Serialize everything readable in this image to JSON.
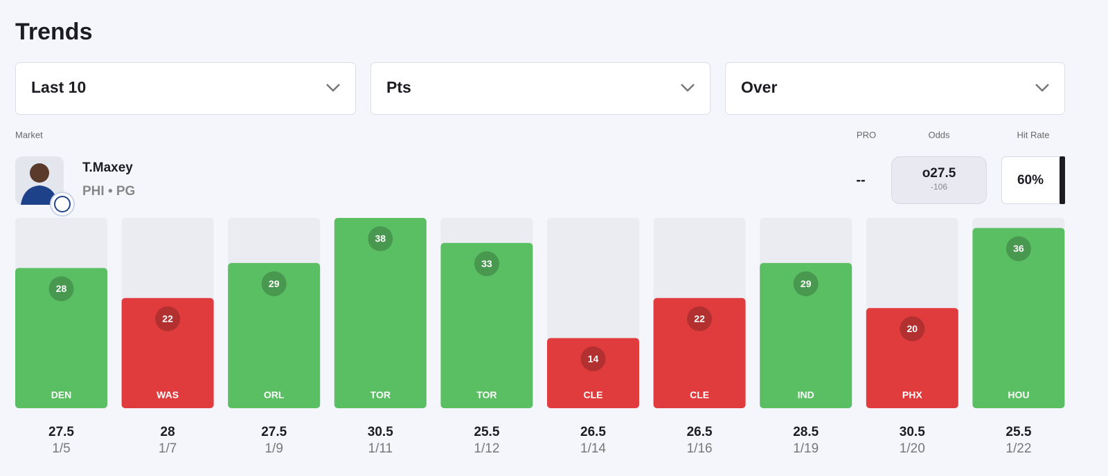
{
  "header": {
    "title": "Trends"
  },
  "filters": [
    "Last 10",
    "Pts",
    "Over"
  ],
  "market": {
    "label": "Market",
    "player": "T.Maxey",
    "team_position": "PHI • PG"
  },
  "columns": {
    "pro": "PRO",
    "odds": "Odds",
    "hit_rate": "Hit Rate"
  },
  "pro_value": "--",
  "odds": {
    "line": "o27.5",
    "price": "-106"
  },
  "hit_rate": "60%",
  "chart_data": {
    "type": "bar",
    "categories": [
      "DEN",
      "WAS",
      "ORL",
      "TOR",
      "TOR",
      "CLE",
      "CLE",
      "IND",
      "PHX",
      "HOU"
    ],
    "values": [
      28,
      22,
      29,
      38,
      33,
      14,
      22,
      29,
      20,
      36
    ],
    "colors": [
      "#5abf63",
      "#e03c3e",
      "#5abf63",
      "#5abf63",
      "#5abf63",
      "#e03c3e",
      "#e03c3e",
      "#5abf63",
      "#e03c3e",
      "#5abf63"
    ],
    "lines": [
      27.5,
      28,
      27.5,
      30.5,
      25.5,
      26.5,
      26.5,
      28.5,
      30.5,
      25.5
    ],
    "dates": [
      "1/5",
      "1/7",
      "1/9",
      "1/11",
      "1/12",
      "1/14",
      "1/16",
      "1/19",
      "1/20",
      "1/22"
    ],
    "ylim": [
      0,
      38
    ]
  }
}
